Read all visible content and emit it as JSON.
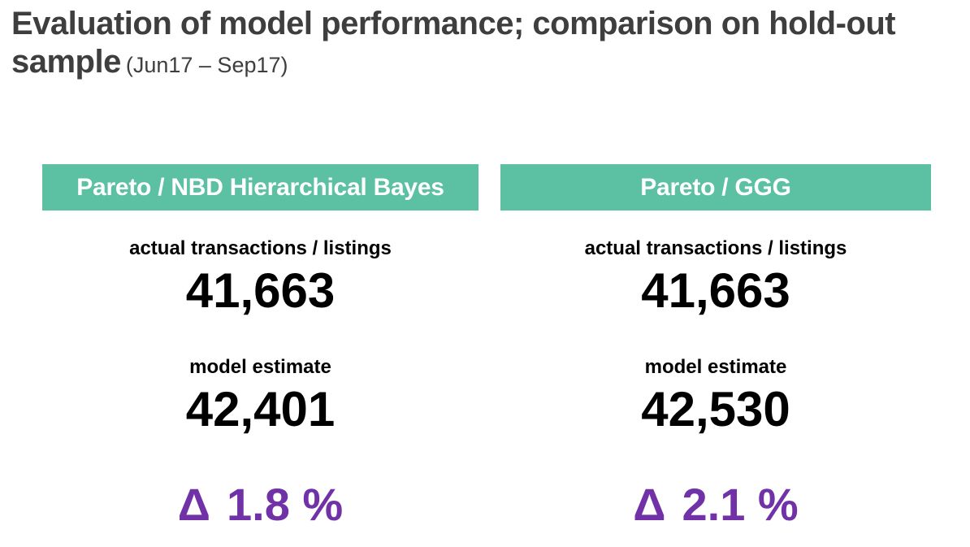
{
  "page": {
    "title": "Evaluation of model performance; comparison on hold-out sample",
    "period": "(Jun17 – Sep17)"
  },
  "colors": {
    "header_green": "#5cc0a3",
    "delta_purple": "#7132a8",
    "title_gray": "#3e3e3e",
    "value_black": "#000000",
    "background": "#ffffff"
  },
  "columns": [
    {
      "header": "Pareto / NBD Hierarchical Bayes",
      "actual_label": "actual transactions / listings",
      "actual_value": "41,663",
      "estimate_label": "model estimate",
      "estimate_value": "42,401",
      "delta_symbol": "Δ",
      "delta_value": "1.8 %"
    },
    {
      "header": "Pareto / GGG",
      "actual_label": "actual transactions / listings",
      "actual_value": "41,663",
      "estimate_label": "model estimate",
      "estimate_value": "42,530",
      "delta_symbol": "Δ",
      "delta_value": "2.1 %"
    }
  ]
}
